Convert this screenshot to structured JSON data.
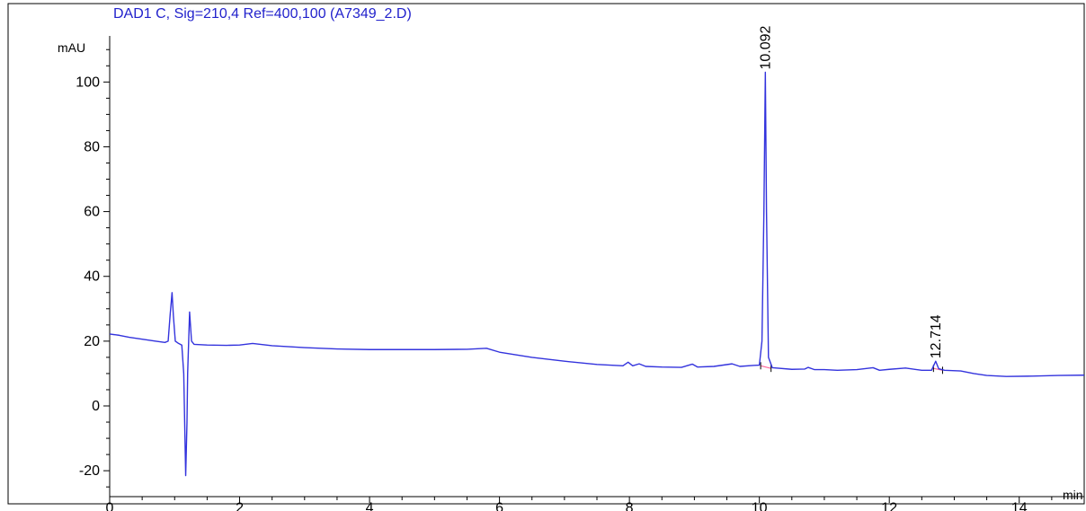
{
  "chart_data": {
    "type": "line",
    "title": "DAD1 C, Sig=210,4 Ref=400,100 (A7349_2.D)",
    "ylabel": "mAU",
    "xlabel": "min",
    "xlim": [
      0,
      15
    ],
    "ylim": [
      -28,
      117
    ],
    "x_ticks": [
      0,
      2,
      4,
      6,
      8,
      10,
      12,
      14
    ],
    "y_ticks": [
      -20,
      0,
      20,
      40,
      60,
      80,
      100
    ],
    "colors": {
      "signal": "#3333dd",
      "title": "#2222cc",
      "axis": "#000000",
      "baseline": "#ff6699"
    },
    "series": [
      {
        "values": [
          [
            0.0,
            22.2
          ],
          [
            0.15,
            21.8
          ],
          [
            0.3,
            21.2
          ],
          [
            0.5,
            20.6
          ],
          [
            0.7,
            20.0
          ],
          [
            0.85,
            19.6
          ],
          [
            0.9,
            20.0
          ],
          [
            0.93,
            28.0
          ],
          [
            0.96,
            35.0
          ],
          [
            0.98,
            28.0
          ],
          [
            1.01,
            20.0
          ],
          [
            1.06,
            19.3
          ],
          [
            1.11,
            18.8
          ],
          [
            1.14,
            10.0
          ],
          [
            1.17,
            -21.5
          ],
          [
            1.19,
            -5.0
          ],
          [
            1.2,
            10.0
          ],
          [
            1.23,
            29.0
          ],
          [
            1.26,
            20.0
          ],
          [
            1.3,
            19.0
          ],
          [
            1.5,
            18.8
          ],
          [
            1.8,
            18.7
          ],
          [
            2.0,
            18.8
          ],
          [
            2.2,
            19.3
          ],
          [
            2.5,
            18.6
          ],
          [
            3.0,
            18.0
          ],
          [
            3.5,
            17.6
          ],
          [
            4.0,
            17.4
          ],
          [
            4.5,
            17.4
          ],
          [
            5.0,
            17.4
          ],
          [
            5.5,
            17.5
          ],
          [
            5.8,
            17.8
          ],
          [
            6.0,
            16.6
          ],
          [
            6.5,
            15.0
          ],
          [
            7.0,
            13.8
          ],
          [
            7.5,
            12.8
          ],
          [
            7.9,
            12.4
          ],
          [
            7.98,
            13.5
          ],
          [
            8.05,
            12.4
          ],
          [
            8.15,
            13.0
          ],
          [
            8.25,
            12.2
          ],
          [
            8.5,
            12.0
          ],
          [
            8.8,
            11.9
          ],
          [
            8.97,
            12.9
          ],
          [
            9.05,
            12.0
          ],
          [
            9.3,
            12.2
          ],
          [
            9.58,
            13.0
          ],
          [
            9.7,
            12.2
          ],
          [
            9.9,
            12.5
          ],
          [
            10.0,
            12.6
          ],
          [
            10.04,
            20.0
          ],
          [
            10.07,
            60.0
          ],
          [
            10.092,
            103.0
          ],
          [
            10.11,
            60.0
          ],
          [
            10.14,
            15.0
          ],
          [
            10.2,
            11.8
          ],
          [
            10.5,
            11.3
          ],
          [
            10.7,
            11.4
          ],
          [
            10.75,
            11.9
          ],
          [
            10.85,
            11.2
          ],
          [
            11.0,
            11.2
          ],
          [
            11.2,
            11.0
          ],
          [
            11.5,
            11.2
          ],
          [
            11.75,
            11.8
          ],
          [
            11.85,
            11.0
          ],
          [
            12.0,
            11.3
          ],
          [
            12.25,
            11.7
          ],
          [
            12.5,
            11.0
          ],
          [
            12.65,
            11.0
          ],
          [
            12.714,
            13.8
          ],
          [
            12.76,
            11.5
          ],
          [
            12.85,
            11.0
          ],
          [
            13.1,
            10.8
          ],
          [
            13.3,
            10.0
          ],
          [
            13.5,
            9.4
          ],
          [
            13.8,
            9.1
          ],
          [
            14.2,
            9.2
          ],
          [
            14.6,
            9.4
          ],
          [
            15.0,
            9.5
          ]
        ]
      }
    ],
    "peaks": [
      {
        "rt": "10.092",
        "x": 10.092,
        "y": 103.0
      },
      {
        "rt": "12.714",
        "x": 12.714,
        "y": 13.8
      }
    ],
    "integration_baselines": [
      [
        [
          10.02,
          12.4
        ],
        [
          10.18,
          11.6
        ]
      ],
      [
        [
          12.68,
          11.6
        ],
        [
          12.82,
          11.0
        ]
      ]
    ]
  }
}
